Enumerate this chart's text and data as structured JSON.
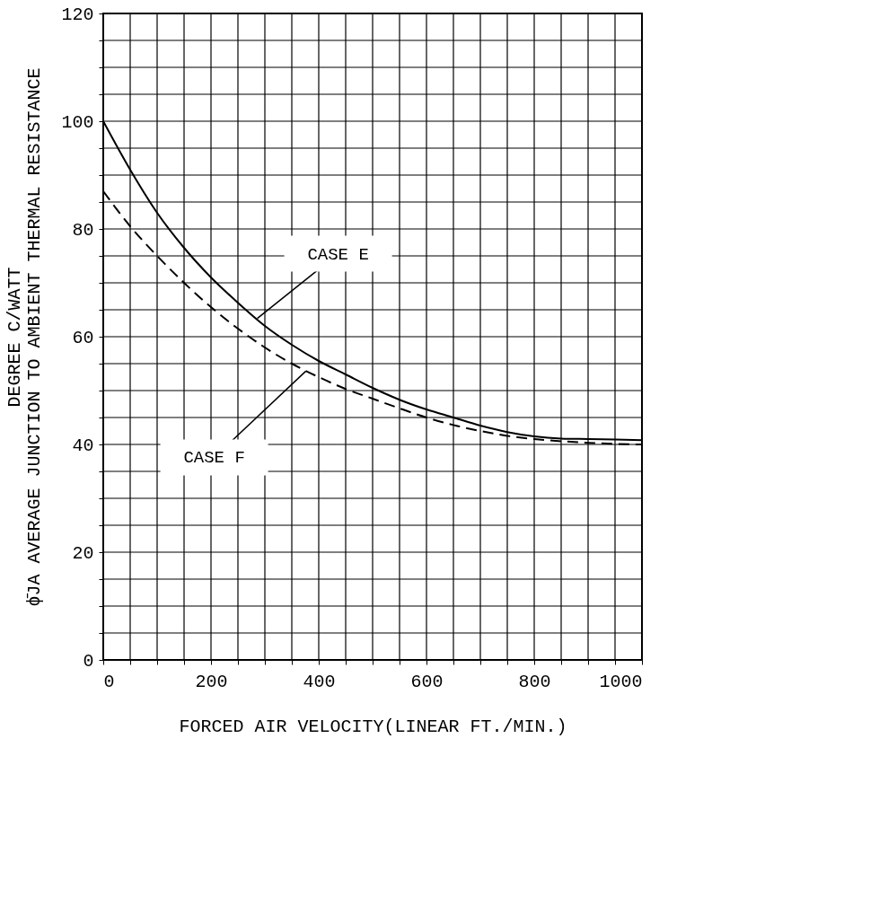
{
  "chart_data": {
    "type": "line",
    "xlabel": "FORCED AIR VELOCITY(LINEAR FT./MIN.)",
    "ylabel": "DEGREE C/WATT\nϕ̄JA AVERAGE JUNCTION TO AMBIENT THERMAL RESISTANCE",
    "x": [
      0,
      50,
      100,
      150,
      200,
      250,
      300,
      350,
      400,
      450,
      500,
      550,
      600,
      650,
      700,
      750,
      800,
      850,
      900,
      950,
      1000
    ],
    "series": [
      {
        "color": "#000000",
        "line_style": "solid",
        "values": [
          100,
          91,
          83,
          76.5,
          71,
          66.3,
          62,
          58.5,
          55.5,
          53,
          50.5,
          48.3,
          46.5,
          45,
          43.5,
          42.3,
          41.5,
          41.1,
          41,
          40.9,
          40.8
        ]
      },
      {
        "color": "#000000",
        "line_style": "dashed",
        "values": [
          87,
          80.5,
          75,
          70,
          65.5,
          61.5,
          58,
          55,
          52.5,
          50.3,
          48.5,
          46.7,
          45,
          43.6,
          42.5,
          41.6,
          41,
          40.6,
          40.3,
          40.1,
          40
        ]
      }
    ],
    "xlim": [
      0,
      1000
    ],
    "ylim": [
      0,
      120
    ],
    "xticks": [
      0,
      {
        "value": 50,
        "label": null
      },
      200,
      {
        "value": 100,
        "label": null
      },
      {
        "value": 150,
        "label": null
      },
      {
        "value": 250,
        "label": null
      },
      {
        "value": 300,
        "label": null
      },
      {
        "value": 350,
        "label": null
      },
      400,
      {
        "value": 450,
        "label": null
      },
      {
        "value": 500,
        "label": null
      },
      {
        "value": 550,
        "label": null
      },
      600,
      {
        "value": 650,
        "label": null
      },
      {
        "value": 700,
        "label": null
      },
      {
        "value": 750,
        "label": null
      },
      800,
      {
        "value": 850,
        "label": null
      },
      {
        "value": 900,
        "label": null
      },
      {
        "value": 950,
        "label": null
      },
      1000
    ],
    "yticks": [
      0,
      {
        "value": 5,
        "label": null
      },
      {
        "value": 10,
        "label": null
      },
      {
        "value": 15,
        "label": null
      },
      20,
      {
        "value": 25,
        "label": null
      },
      {
        "value": 30,
        "label": null
      },
      {
        "value": 35,
        "label": null
      },
      40,
      {
        "value": 45,
        "label": null
      },
      {
        "value": 50,
        "label": null
      },
      {
        "value": 55,
        "label": null
      },
      60,
      {
        "value": 65,
        "label": null
      },
      {
        "value": 70,
        "label": null
      },
      {
        "value": 75,
        "label": null
      },
      80,
      {
        "value": 85,
        "label": null
      },
      {
        "value": 90,
        "label": null
      },
      {
        "value": 95,
        "label": null
      },
      100,
      {
        "value": 105,
        "label": null
      },
      {
        "value": 110,
        "label": null
      },
      {
        "value": 115,
        "label": null
      },
      120
    ],
    "grid": true,
    "annotations": [
      {
        "text": "CASE E",
        "x": 286,
        "y": 63.4
      },
      {
        "text": "CASE F",
        "x": 376,
        "y": 53.6
      }
    ]
  }
}
